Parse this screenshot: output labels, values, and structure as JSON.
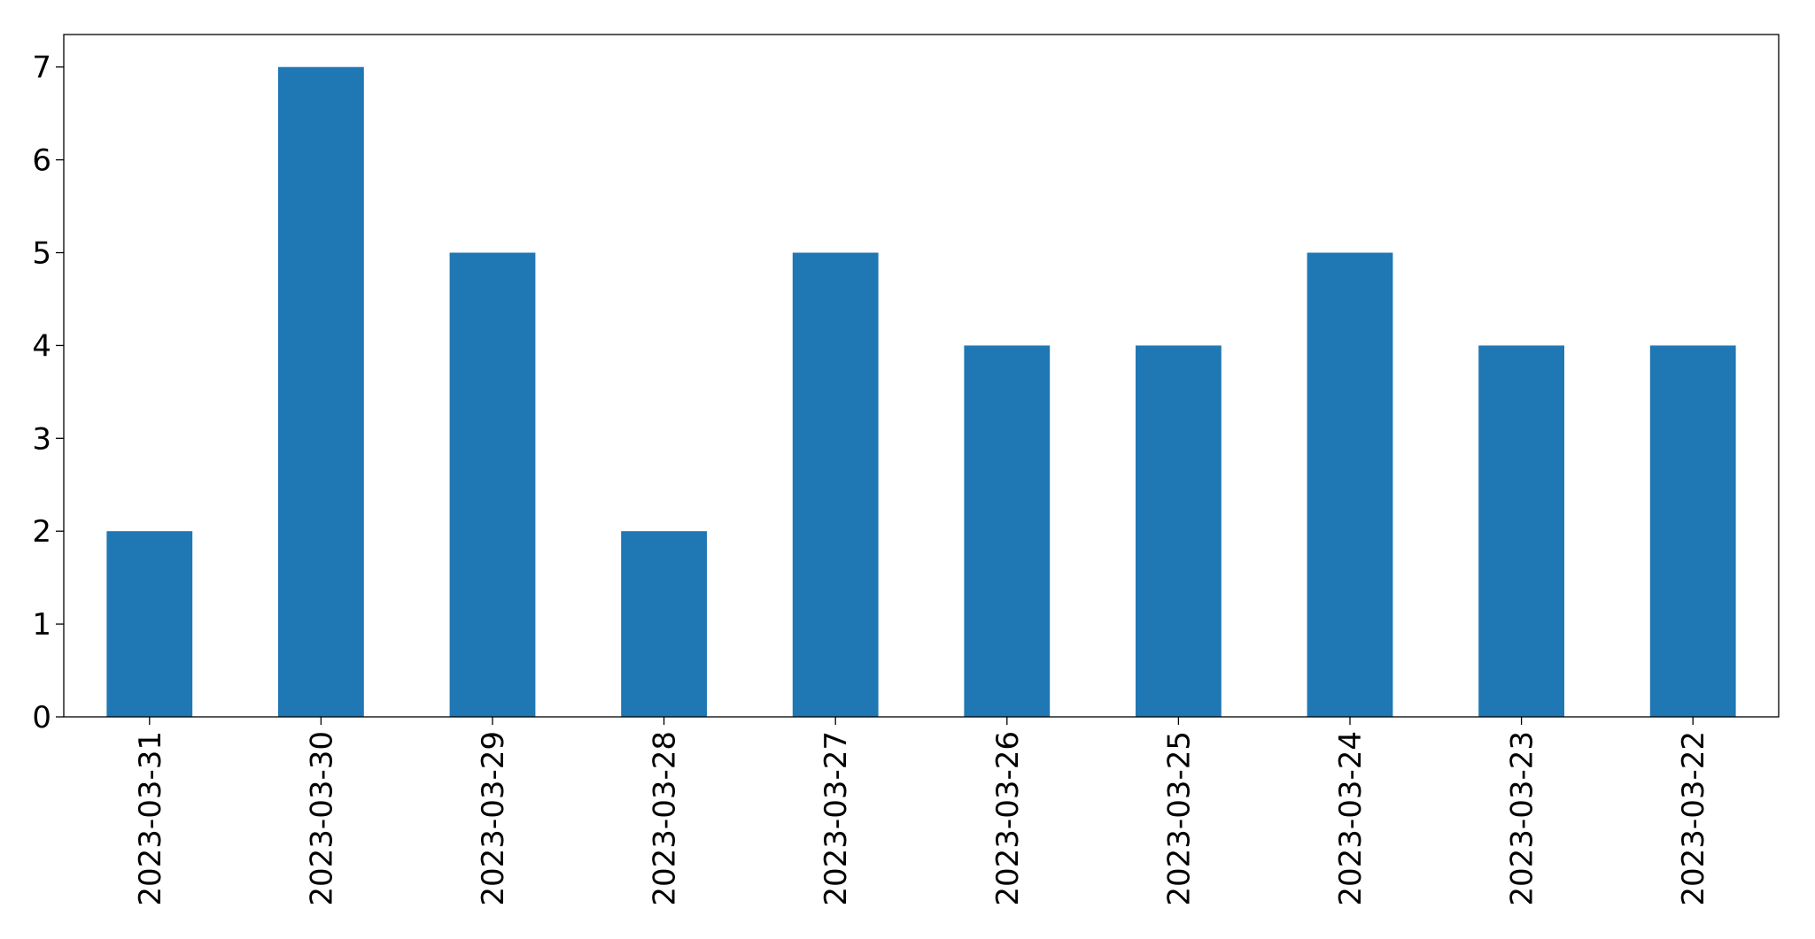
{
  "chart_data": {
    "type": "bar",
    "categories": [
      "2023-03-31",
      "2023-03-30",
      "2023-03-29",
      "2023-03-28",
      "2023-03-27",
      "2023-03-26",
      "2023-03-25",
      "2023-03-24",
      "2023-03-23",
      "2023-03-22"
    ],
    "values": [
      2,
      7,
      5,
      2,
      5,
      4,
      4,
      5,
      4,
      4
    ],
    "color": "#1f77b4",
    "ylim": [
      0,
      7.35
    ],
    "yticks": [
      0,
      1,
      2,
      3,
      4,
      5,
      6,
      7
    ],
    "grid": false
  }
}
